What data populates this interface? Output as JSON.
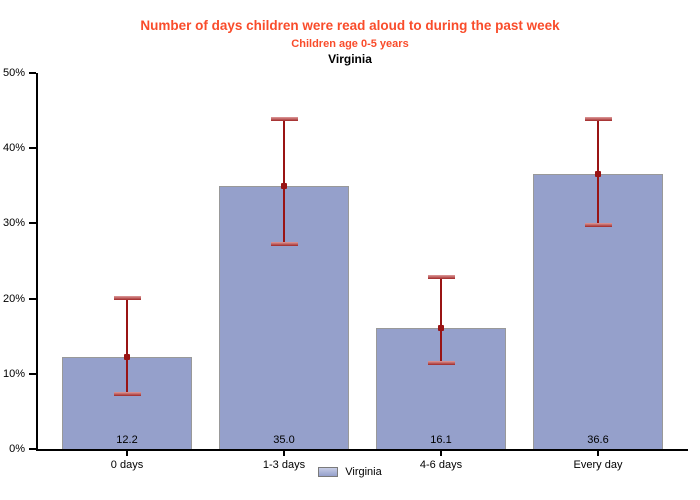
{
  "chart_data": {
    "type": "bar",
    "title": "Number of days children were read aloud to during the past week",
    "subtitle": "Children age 0-5 years",
    "region_line": "Virginia",
    "categories": [
      "0 days",
      "1-3 days",
      "4-6 days",
      "Every day"
    ],
    "series": [
      {
        "name": "Virginia",
        "values": [
          12.2,
          35.0,
          16.1,
          36.6
        ],
        "value_labels": [
          "12.2",
          "35.0",
          "16.1",
          "36.6"
        ],
        "ci_low": [
          7.3,
          27.2,
          11.4,
          29.8
        ],
        "ci_high": [
          20.0,
          43.8,
          22.7,
          43.8
        ]
      }
    ],
    "xlabel": "",
    "ylabel": "",
    "ylim": [
      0,
      50
    ],
    "ytick_values": [
      0,
      10,
      20,
      30,
      40,
      50
    ],
    "ytick_labels": [
      "0%",
      "10%",
      "20%",
      "30%",
      "40%",
      "50%"
    ],
    "grid": false,
    "legend": {
      "position": "bottom"
    },
    "colors": {
      "title": "#F94C2B",
      "subtitle": "#F94C2B",
      "bar_fill": "#95A0CB",
      "bar_border": "#999999",
      "error_stem": "#991414",
      "error_cap_light": "#DD9C9C",
      "error_cap_dark": "#A02828",
      "axis": "#000000",
      "text": "#000000",
      "legend_swatch_top": "#C6CCE5",
      "legend_swatch_bottom": "#95A0CB"
    }
  }
}
